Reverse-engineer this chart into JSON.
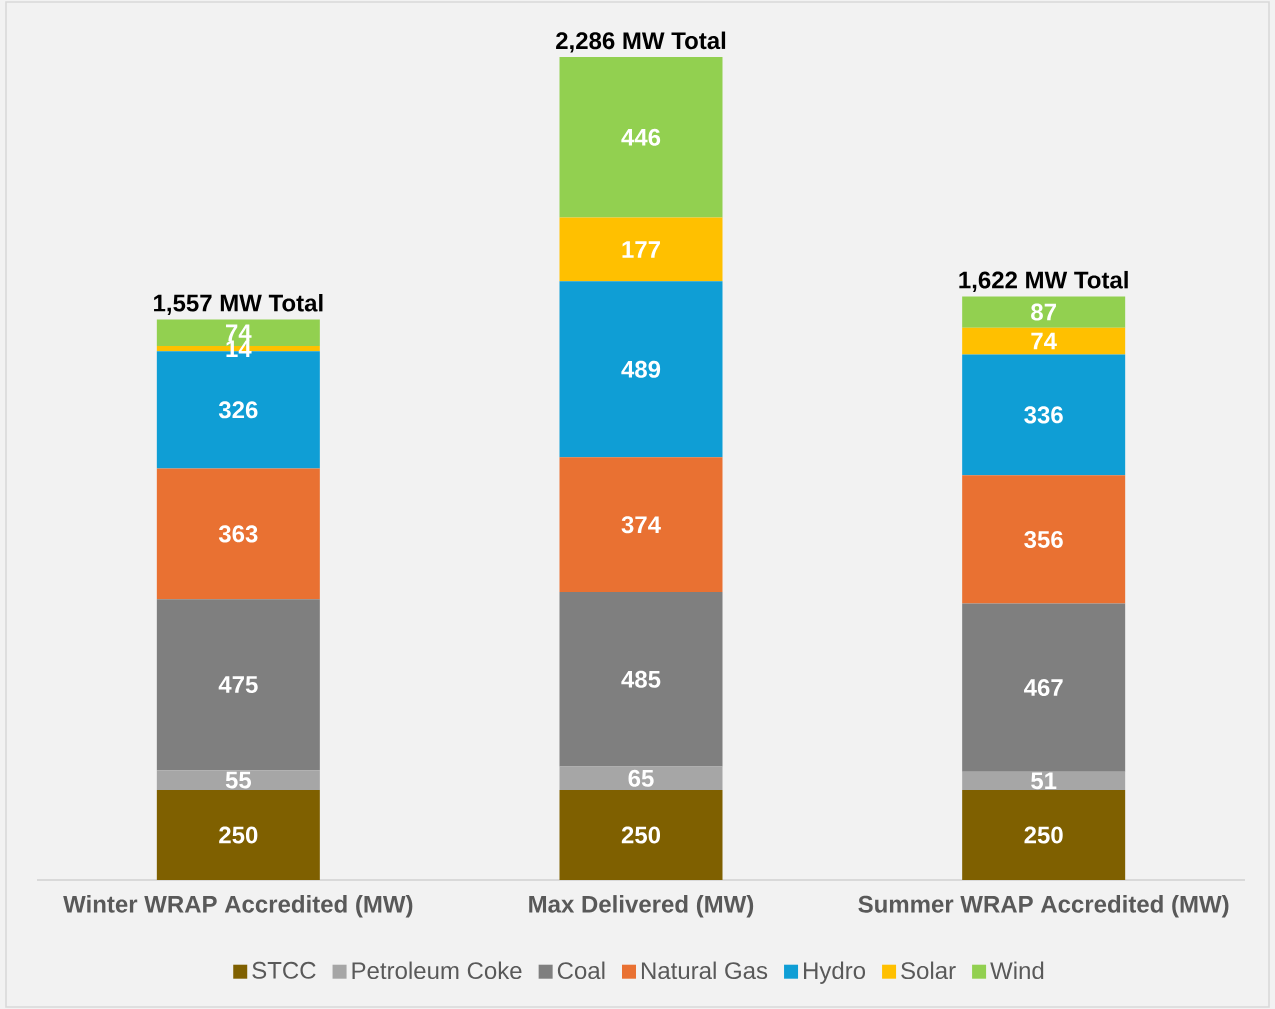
{
  "chart_data": {
    "type": "bar",
    "stacked": true,
    "data_labels": true,
    "legend": "bottom",
    "categories": [
      "Winter WRAP Accredited (MW)",
      "Max Delivered (MW)",
      "Summer WRAP Accredited (MW)"
    ],
    "series": [
      {
        "name": "STCC",
        "color": "#7f6000",
        "values": [
          250,
          250,
          250
        ]
      },
      {
        "name": "Petroleum Coke",
        "color": "#a6a6a6",
        "values": [
          55,
          65,
          51
        ]
      },
      {
        "name": "Coal",
        "color": "#7f7f7f",
        "values": [
          475,
          485,
          467
        ]
      },
      {
        "name": "Natural Gas",
        "color": "#e97132",
        "values": [
          363,
          374,
          356
        ]
      },
      {
        "name": "Hydro",
        "color": "#0f9ed5",
        "values": [
          326,
          489,
          336
        ]
      },
      {
        "name": "Solar",
        "color": "#ffc000",
        "values": [
          14,
          177,
          74
        ]
      },
      {
        "name": "Wind",
        "color": "#92d050",
        "values": [
          74,
          446,
          87
        ]
      }
    ],
    "totals": [
      "1,557 MW Total",
      "2,286 MW Total",
      "1,622 MW Total"
    ]
  }
}
